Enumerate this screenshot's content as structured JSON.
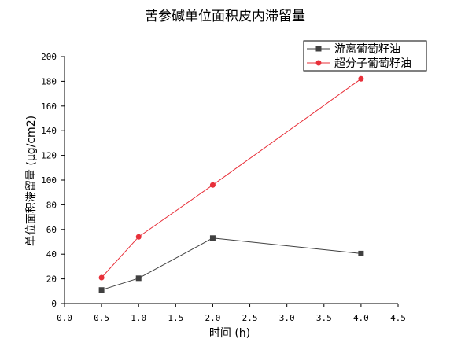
{
  "chart_data": {
    "type": "line",
    "title": "苦参碱单位面积皮内滞留量",
    "xlabel": "时间 (h)",
    "ylabel": "单位面积滞留量 (μg/cm2)",
    "xlim": [
      0,
      4.5
    ],
    "ylim": [
      0,
      200
    ],
    "xticks": [
      "0.0",
      "0.5",
      "1.0",
      "1.5",
      "2.0",
      "2.5",
      "3.0",
      "3.5",
      "4.0",
      "4.5"
    ],
    "yticks": [
      "0",
      "20",
      "40",
      "60",
      "80",
      "100",
      "120",
      "140",
      "160",
      "180",
      "200"
    ],
    "grid": false,
    "legend_position": "top-right",
    "series": [
      {
        "name": "游离葡萄籽油",
        "color": "#404040",
        "marker": "square",
        "x": [
          0.5,
          1.0,
          2.0,
          4.0
        ],
        "y": [
          11,
          20.5,
          53,
          40.5
        ]
      },
      {
        "name": "超分子葡萄籽油",
        "color": "#e8303a",
        "marker": "circle",
        "x": [
          0.5,
          1.0,
          2.0,
          4.0
        ],
        "y": [
          21,
          54,
          96,
          182
        ]
      }
    ]
  }
}
